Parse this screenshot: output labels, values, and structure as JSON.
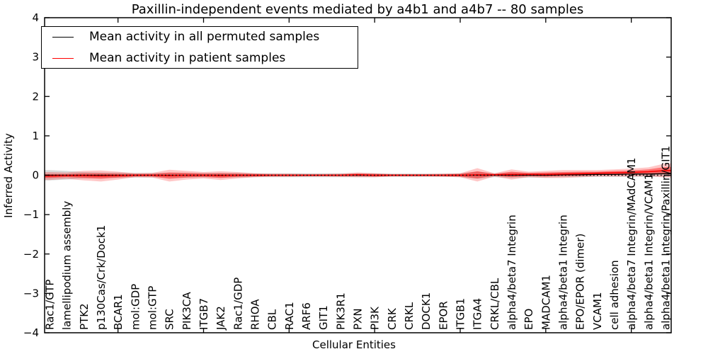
{
  "figure": {
    "background": "#ffffff"
  },
  "chart_data": {
    "type": "line",
    "title": "Paxillin-independent events mediated by a4b1 and a4b7 -- 80 samples",
    "xlabel": "Cellular Entities",
    "ylabel": "Inferred Activity",
    "ylim": [
      -4,
      4
    ],
    "yticks": [
      -4,
      -3,
      -2,
      -1,
      0,
      1,
      2,
      3,
      4
    ],
    "xtick_indices": [
      4,
      9,
      14,
      19,
      24,
      29,
      34
    ],
    "grid": false,
    "categories": [
      "Rac1/GTP",
      "lamellipodium assembly",
      "PTK2",
      "p130Cas/Crk/Dock1",
      "BCAR1",
      "mol:GDP",
      "mol:GTP",
      "SRC",
      "PIK3CA",
      "ITGB7",
      "JAK2",
      "Rac1/GDP",
      "RHOA",
      "CBL",
      "RAC1",
      "ARF6",
      "GIT1",
      "PIK3R1",
      "PXN",
      "PI3K",
      "CRK",
      "CRKL",
      "DOCK1",
      "EPOR",
      "ITGB1",
      "ITGA4",
      "CRKL/CBL",
      "alpha4/beta7 Integrin",
      "EPO",
      "MADCAM1",
      "alpha4/beta1 Integrin",
      "EPO/EPOR (dimer)",
      "VCAM1",
      "cell adhesion",
      "alpha4/beta7 Integrin/MAdCAM1",
      "alpha4/beta1 Integrin/VCAM1",
      "alpha4/beta1 Integrin/Paxillin/GIT1"
    ],
    "series": [
      {
        "name": "Mean activity in all permuted samples",
        "color": "#000000",
        "values": [
          0,
          0,
          0,
          0,
          0,
          0,
          0,
          0,
          0,
          0,
          0,
          0,
          0,
          0,
          0,
          0,
          0,
          0,
          0,
          0,
          0,
          0,
          0,
          0,
          0,
          0,
          0,
          0,
          0,
          0,
          0.01,
          0.01,
          0.02,
          0.02,
          0.03,
          0.03,
          0.04
        ]
      },
      {
        "name": "Mean activity in patient samples",
        "color": "#ff0000",
        "values": [
          -0.02,
          -0.01,
          -0.01,
          -0.02,
          -0.01,
          0,
          0,
          -0.01,
          0,
          0,
          -0.01,
          0,
          0,
          0,
          0,
          0,
          0,
          0,
          0.01,
          0,
          0,
          0,
          0,
          0,
          0,
          0.01,
          0.01,
          0.02,
          0.02,
          0.02,
          0.03,
          0.04,
          0.05,
          0.06,
          0.07,
          0.09,
          0.12
        ]
      }
    ],
    "bands": [
      {
        "name": "permuted-samples-spread",
        "center_series": 0,
        "color": "#000000",
        "opacity": 0.15,
        "half_widths": [
          0.13,
          0.11,
          0.08,
          0.07,
          0.07,
          0.06,
          0.06,
          0.06,
          0.06,
          0.06,
          0.06,
          0.06,
          0.05,
          0.05,
          0.05,
          0.05,
          0.05,
          0.05,
          0.05,
          0.05,
          0.04,
          0.04,
          0.04,
          0.04,
          0.05,
          0.09,
          0.05,
          0.07,
          0.06,
          0.06,
          0.06,
          0.06,
          0.06,
          0.06,
          0.07,
          0.07,
          0.08
        ]
      },
      {
        "name": "patient-samples-spread-outer",
        "center_series": 1,
        "color": "#ff0000",
        "opacity": 0.22,
        "half_widths": [
          0.1,
          0.08,
          0.12,
          0.14,
          0.1,
          0.05,
          0.06,
          0.15,
          0.11,
          0.08,
          0.11,
          0.08,
          0.05,
          0.04,
          0.04,
          0.03,
          0.03,
          0.04,
          0.06,
          0.05,
          0.03,
          0.03,
          0.03,
          0.04,
          0.05,
          0.17,
          0.04,
          0.13,
          0.07,
          0.09,
          0.1,
          0.09,
          0.08,
          0.09,
          0.1,
          0.11,
          0.18
        ]
      },
      {
        "name": "patient-samples-spread-inner",
        "center_series": 1,
        "color": "#ff0000",
        "opacity": 0.42,
        "half_widths": [
          0.05,
          0.04,
          0.06,
          0.07,
          0.05,
          0.03,
          0.03,
          0.08,
          0.06,
          0.04,
          0.06,
          0.04,
          0.03,
          0.02,
          0.02,
          0.02,
          0.02,
          0.02,
          0.03,
          0.03,
          0.02,
          0.02,
          0.02,
          0.02,
          0.03,
          0.09,
          0.02,
          0.07,
          0.04,
          0.05,
          0.05,
          0.05,
          0.04,
          0.05,
          0.05,
          0.06,
          0.09
        ]
      }
    ],
    "zero_line": {
      "y": 0,
      "style": "dotted",
      "color": "#000000"
    },
    "legend": {
      "position": "upper-left",
      "entries": [
        {
          "label": "Mean activity in all permuted samples",
          "color": "#000000"
        },
        {
          "label": "Mean activity in patient samples",
          "color": "#ff0000"
        }
      ]
    }
  }
}
